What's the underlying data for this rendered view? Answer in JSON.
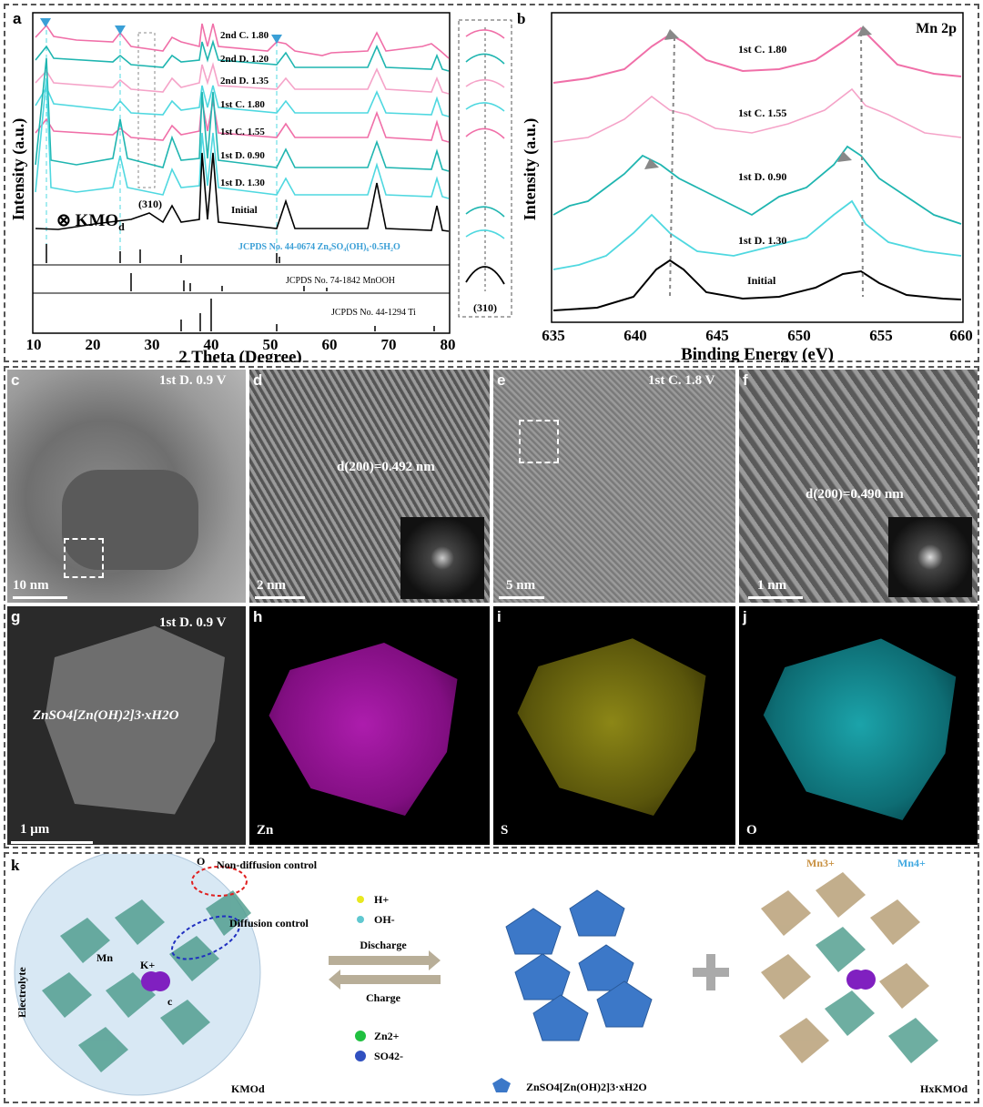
{
  "panel_a": {
    "label": "a",
    "xlabel": "2 Theta (Degree)",
    "ylabel": "Intensity (a.u.)",
    "xticks": [
      "10",
      "20",
      "30",
      "40",
      "50",
      "60",
      "70",
      "80"
    ],
    "curve_labels": [
      "2nd C. 1.80",
      "2nd D. 1.20",
      "2nd D. 1.35",
      "1st C. 1.80",
      "1st C. 1.55",
      "1st D. 0.90",
      "1st D. 1.30",
      "Initial"
    ],
    "kmo_label": "KMO",
    "kmo_sub": "d",
    "peak310": "(310)",
    "ref1": "JCPDS No. 44-0674 Zn₄SO₄(OH)₆·0.5H₂O",
    "ref2": "JCPDS No. 74-1842 MnOOH",
    "ref3": "JCPDS No. 44-1294 Ti",
    "inset_label": "(310)",
    "colors": {
      "pink": "#f06fa8",
      "lightpink": "#f5a3c8",
      "teal": "#1fb5b0",
      "cyan": "#4fd8e0",
      "black": "#000000",
      "blue_marker": "#3a9fd6"
    }
  },
  "panel_b": {
    "label": "b",
    "title": "Mn 2p",
    "xlabel": "Binding Energy (eV)",
    "ylabel": "Intensity (a.u.)",
    "xticks": [
      "635",
      "640",
      "645",
      "650",
      "655",
      "660"
    ],
    "curve_labels": [
      "1st C. 1.80",
      "1st C. 1.55",
      "1st D. 0.90",
      "1st D. 1.30",
      "Initial"
    ]
  },
  "panel_c": {
    "label": "c",
    "caption": "1st D. 0.9 V",
    "scale": "10 nm"
  },
  "panel_d": {
    "label": "d",
    "dspacing": "d(200)=0.492 nm",
    "scale": "2 nm"
  },
  "panel_e": {
    "label": "e",
    "caption": "1st C. 1.8 V",
    "scale": "5 nm"
  },
  "panel_f": {
    "label": "f",
    "dspacing": "d(200)=0.490 nm",
    "scale": "1 nm"
  },
  "panel_g": {
    "label": "g",
    "caption": "1st D. 0.9 V",
    "formula": "ZnSO4[Zn(OH)2]3·xH2O",
    "scale": "1 μm"
  },
  "panel_h": {
    "label": "h",
    "element": "Zn",
    "color": "#c020c0"
  },
  "panel_i": {
    "label": "i",
    "element": "S",
    "color": "#c8c020"
  },
  "panel_j": {
    "label": "j",
    "element": "O",
    "color": "#20c0c8"
  },
  "panel_k": {
    "label": "k",
    "non_diffusion": "Non-diffusion control",
    "diffusion": "Diffusion control",
    "electrolyte": "Electrolyte",
    "o_label": "O",
    "mn_label": "Mn",
    "k_label": "K+",
    "c_label": "c",
    "h_legend": "H+",
    "oh_legend": "OH-",
    "discharge": "Discharge",
    "charge": "Charge",
    "zn_legend": "Zn2+",
    "so4_legend": "SO42-",
    "kmo_label": "KMOd",
    "zn_compound": "ZnSO4[Zn(OH)2]3·xH2O",
    "mn3": "Mn3+",
    "mn4": "Mn4+",
    "hkmo": "HxKMOd"
  }
}
